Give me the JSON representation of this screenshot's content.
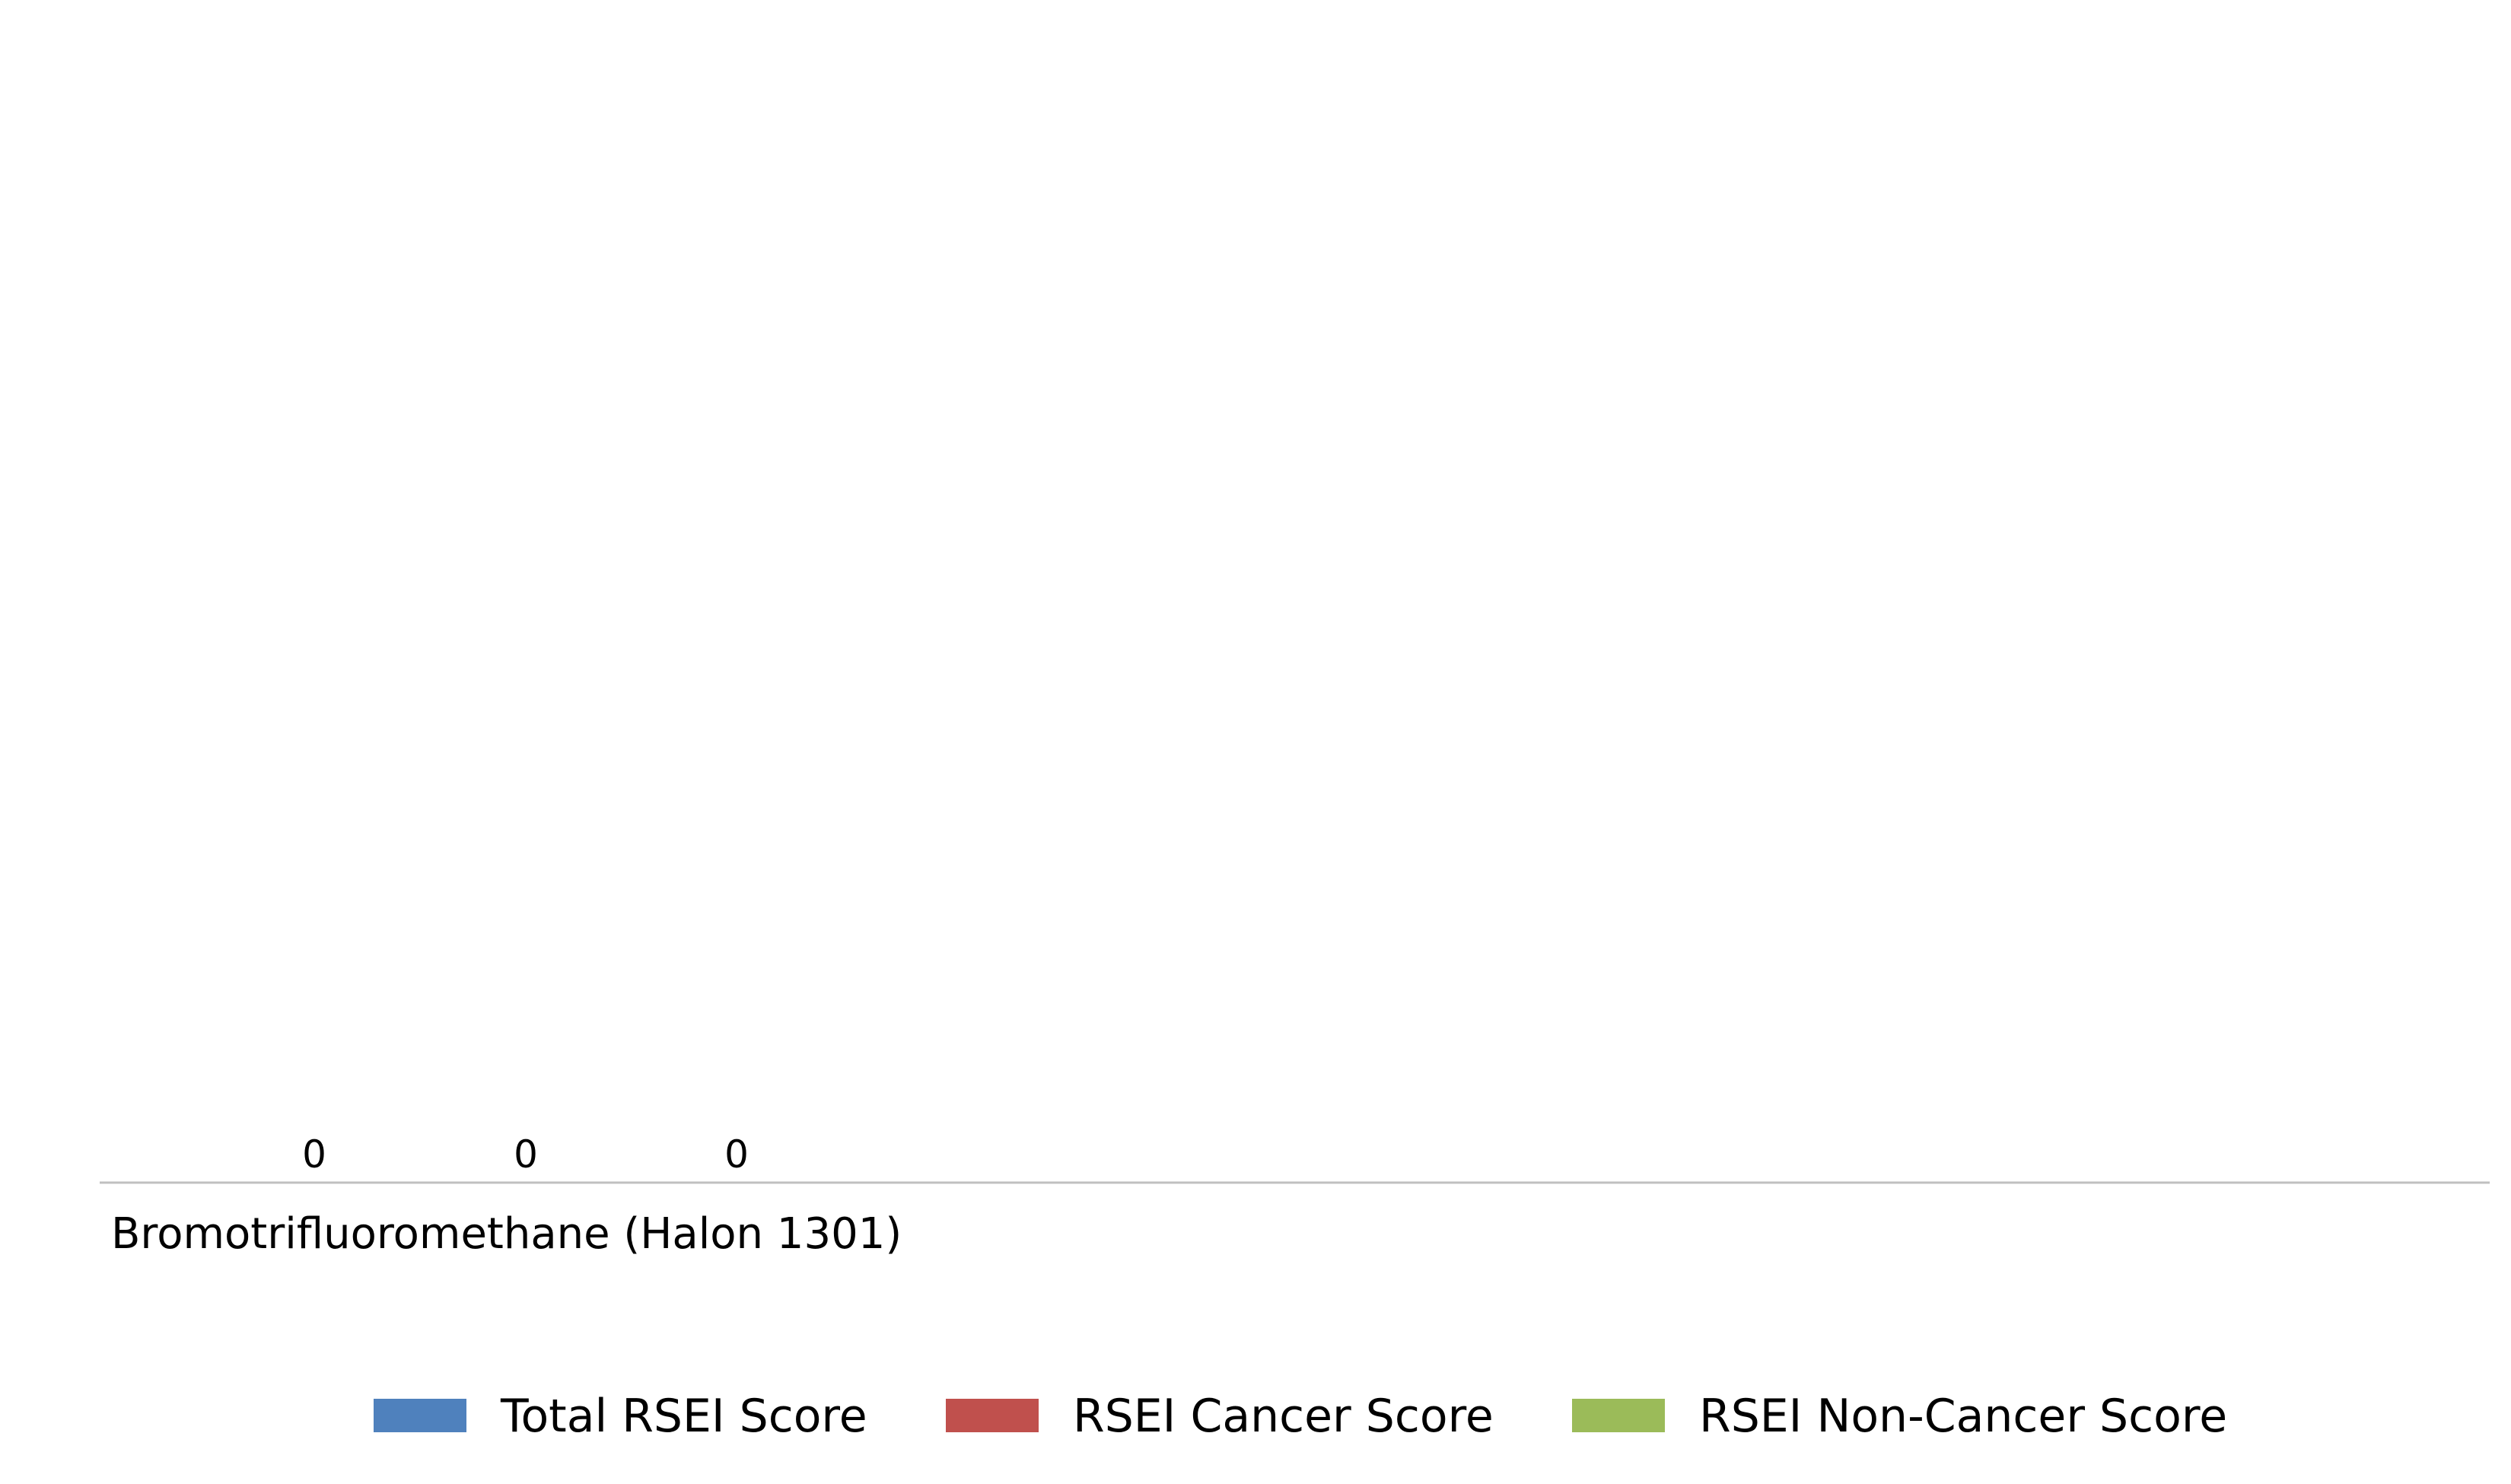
{
  "chart_data": {
    "type": "bar",
    "categories": [
      "Bromotrifluoromethane (Halon 1301)"
    ],
    "series": [
      {
        "name": "Total RSEI Score",
        "values": [
          0
        ],
        "color": "#4f81bd"
      },
      {
        "name": "RSEI Cancer Score",
        "values": [
          0
        ],
        "color": "#c0504d"
      },
      {
        "name": "RSEI Non-Cancer Score",
        "values": [
          0
        ],
        "color": "#9bbb59"
      }
    ],
    "data_labels": [
      "0",
      "0",
      "0"
    ],
    "title": "",
    "xlabel": "",
    "ylabel": "",
    "grid": false,
    "legend": "bottom-center",
    "axis_color": "#c0c0c0"
  }
}
